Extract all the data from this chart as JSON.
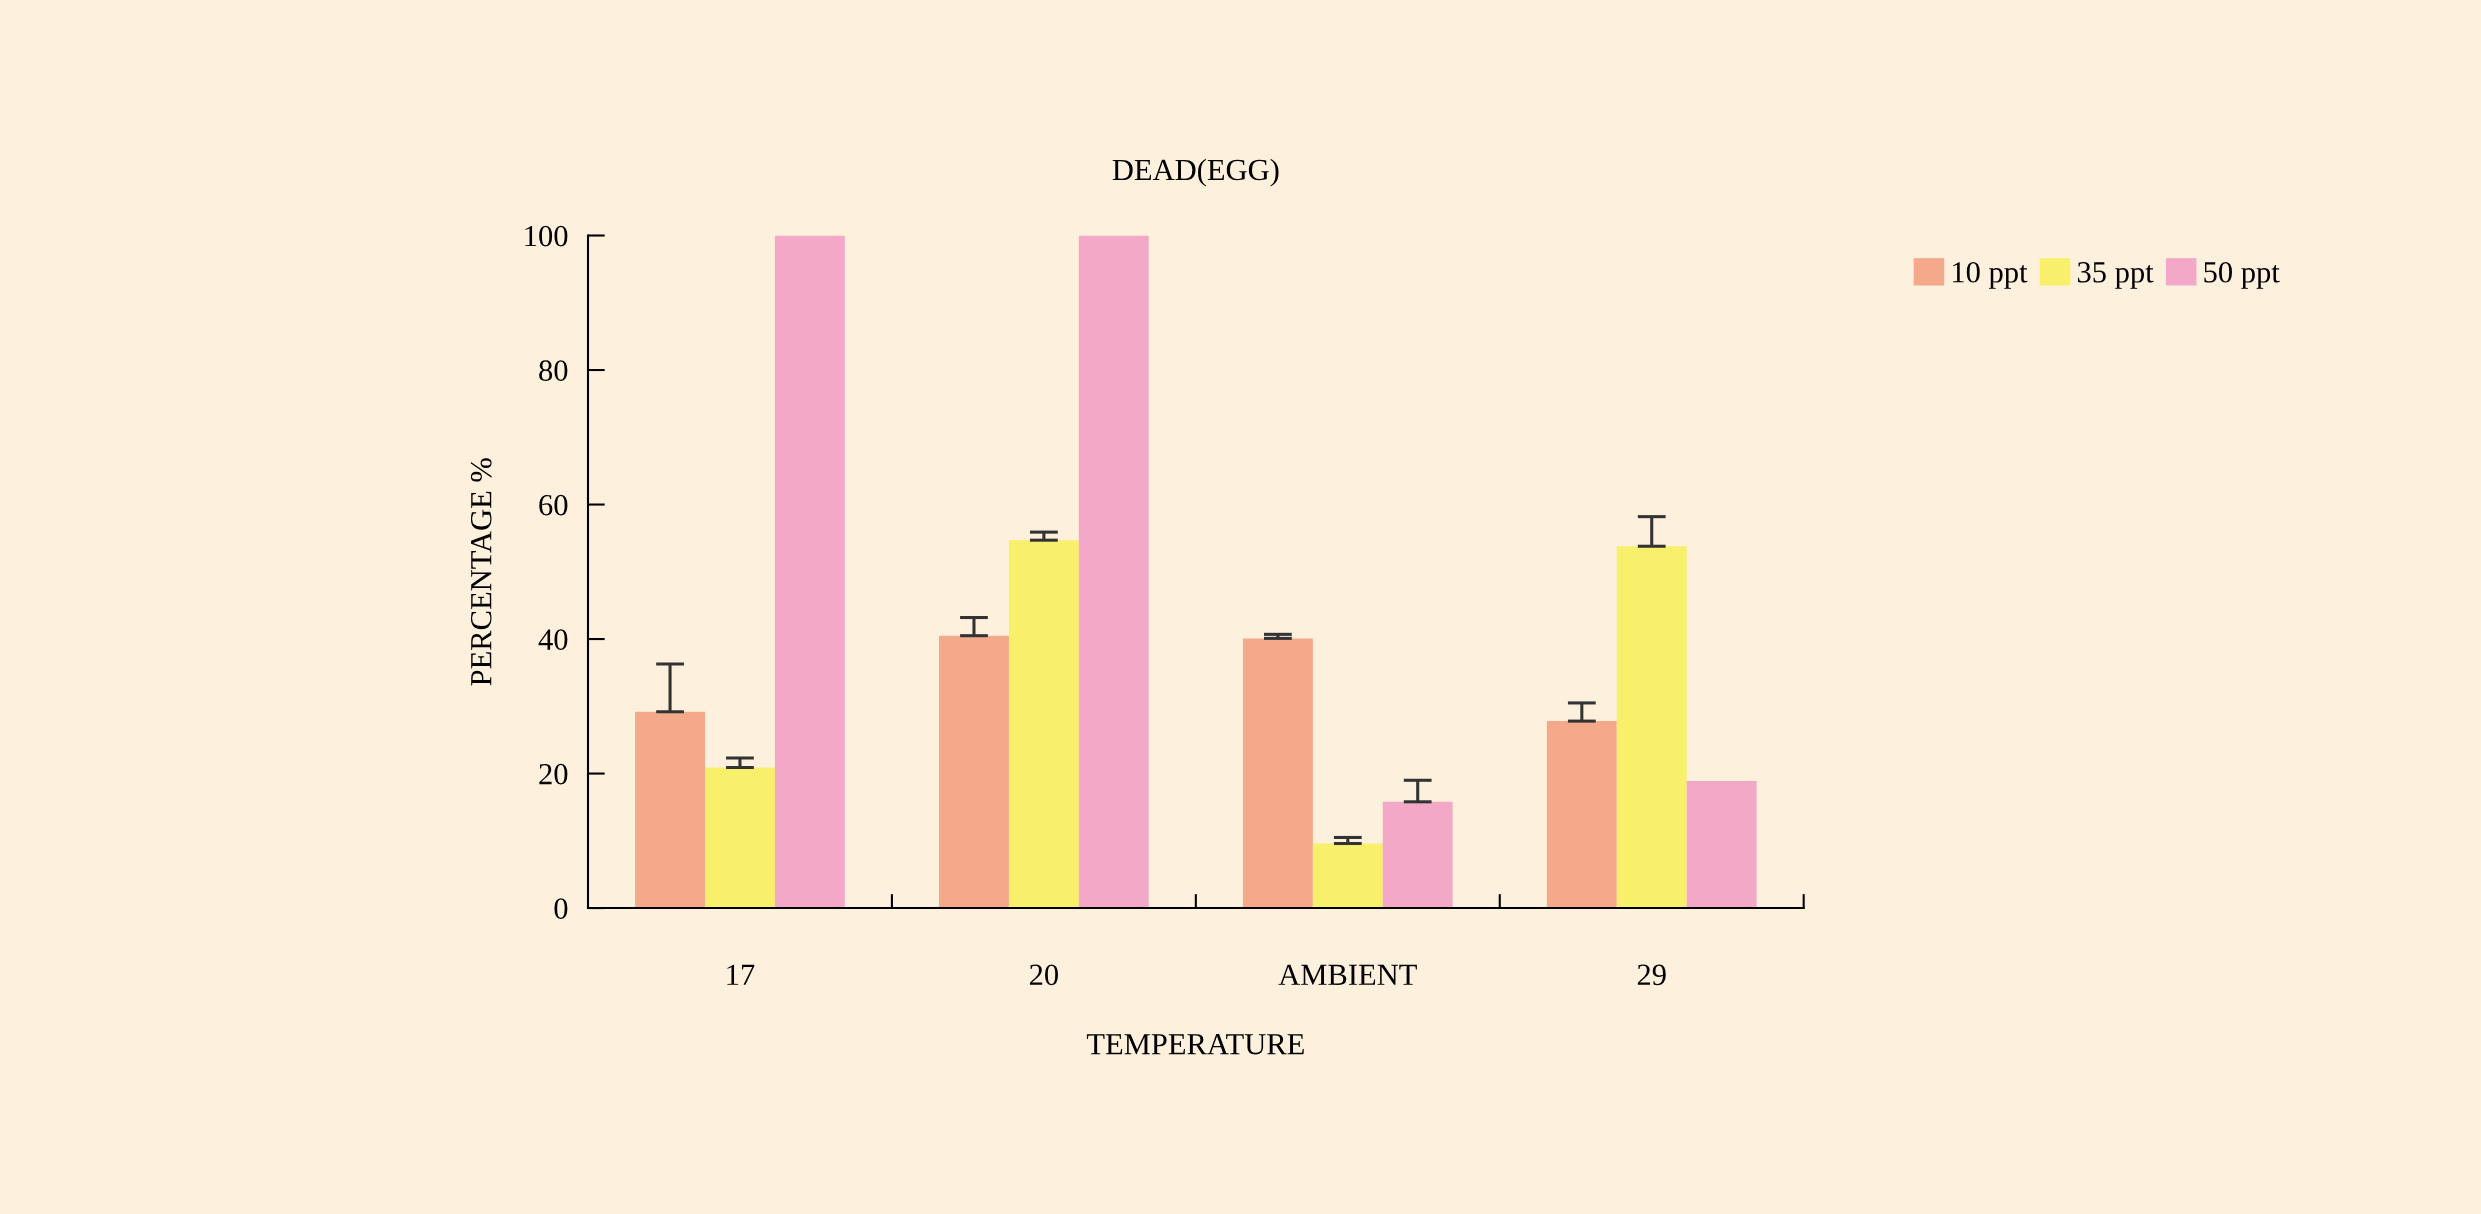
{
  "chart_data": {
    "type": "bar",
    "title": "DEAD(EGG)",
    "xlabel": "TEMPERATURE",
    "ylabel": "PERCENTAGE %",
    "categories": [
      "17",
      "20",
      "AMBIENT",
      "29"
    ],
    "series": [
      {
        "name": "10 ppt",
        "color": "#f4a98a",
        "values": [
          29.2,
          40.5,
          40.1,
          27.8
        ],
        "errors": [
          [
            29.2,
            36.3
          ],
          [
            40.5,
            43.2
          ],
          [
            40.1,
            40.7
          ],
          [
            27.8,
            30.5
          ]
        ]
      },
      {
        "name": "35 ppt",
        "color": "#f8f06a",
        "values": [
          20.9,
          54.7,
          9.6,
          53.8
        ],
        "errors": [
          [
            20.9,
            22.3
          ],
          [
            54.7,
            55.9
          ],
          [
            9.6,
            10.5
          ],
          [
            53.8,
            58.2
          ]
        ]
      },
      {
        "name": "50 ppt",
        "color": "#f4a8c8",
        "values": [
          100,
          100,
          15.8,
          18.9
        ],
        "errors": [
          null,
          null,
          [
            15.8,
            19.0
          ],
          null
        ]
      }
    ],
    "ylim": [
      0,
      100
    ],
    "yticks": [
      0,
      20,
      40,
      60,
      80,
      100
    ],
    "grid": false,
    "legend": "top right"
  }
}
